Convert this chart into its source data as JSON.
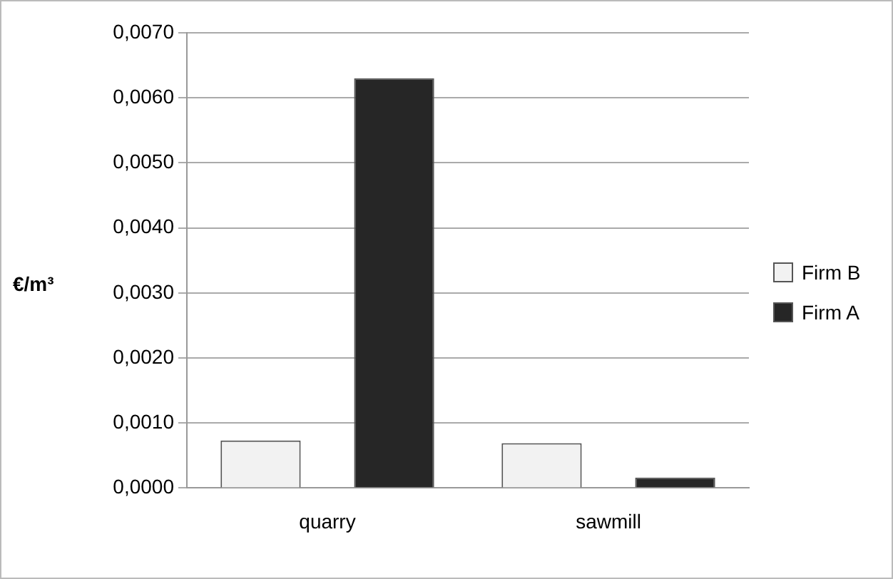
{
  "chart_data": {
    "type": "bar",
    "ylabel": "€/m³",
    "categories": [
      "quarry",
      "sawmill"
    ],
    "series": [
      {
        "name": "Firm B",
        "color": "#f2f2f2",
        "values": [
          0.00073,
          0.00069
        ]
      },
      {
        "name": "Firm A",
        "color": "#262626",
        "values": [
          0.0063,
          0.00016
        ]
      }
    ],
    "ylim": [
      0,
      0.007
    ],
    "yticks": [
      {
        "value": 0,
        "label": "0,0000"
      },
      {
        "value": 0.001,
        "label": "0,0010"
      },
      {
        "value": 0.002,
        "label": "0,0020"
      },
      {
        "value": 0.003,
        "label": "0,0030"
      },
      {
        "value": 0.004,
        "label": "0,0040"
      },
      {
        "value": 0.005,
        "label": "0,0050"
      },
      {
        "value": 0.006,
        "label": "0,0060"
      },
      {
        "value": 0.007,
        "label": "0,0070"
      }
    ],
    "grid": "y",
    "legend": "right"
  }
}
